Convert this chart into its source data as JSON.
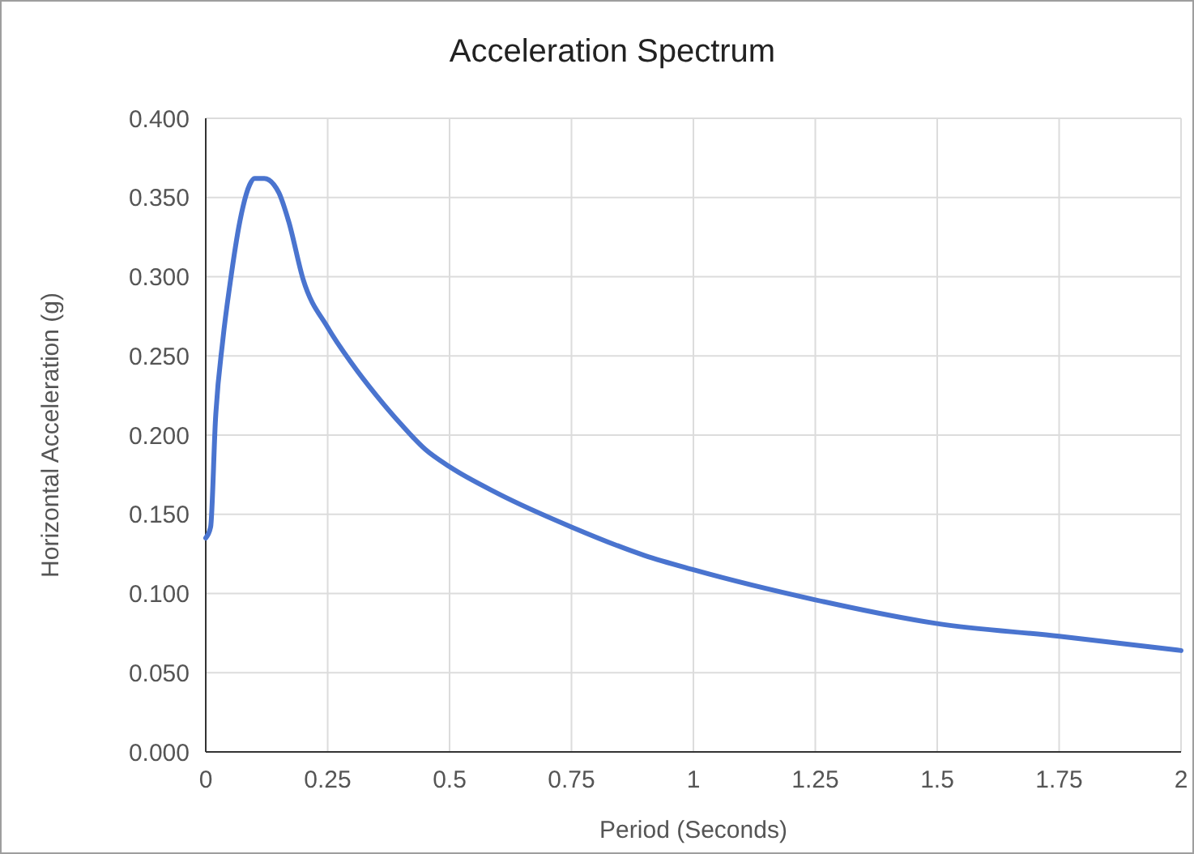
{
  "chart_data": {
    "type": "line",
    "title": "Acceleration Spectrum",
    "xlabel": "Period (Seconds)",
    "ylabel": "Horizontal Acceleration (g)",
    "series": [
      {
        "color": "#4a74cf",
        "x": [
          0,
          0.01,
          0.02,
          0.035,
          0.05,
          0.07,
          0.09,
          0.1,
          0.12,
          0.14,
          0.15,
          0.17,
          0.2,
          0.25,
          0.3,
          0.35,
          0.4,
          0.45,
          0.5,
          0.6,
          0.75,
          0.9,
          1,
          1.25,
          1.5,
          1.75,
          2
        ],
        "values": [
          0.135,
          0.142,
          0.21,
          0.26,
          0.296,
          0.335,
          0.358,
          0.362,
          0.362,
          0.358,
          0.353,
          0.335,
          0.298,
          0.268,
          0.245,
          0.225,
          0.207,
          0.191,
          0.18,
          0.163,
          0.142,
          0.124,
          0.115,
          0.096,
          0.081,
          0.073,
          0.064
        ]
      }
    ],
    "xlim": [
      0,
      2
    ],
    "xticks": [
      0,
      0.25,
      0.5,
      0.75,
      1,
      1.25,
      1.5,
      1.75,
      2
    ],
    "ylim": [
      0,
      0.4
    ],
    "yticks": [
      {
        "value": 0,
        "label": "0.000"
      },
      {
        "value": 0.05,
        "label": "0.050"
      },
      {
        "value": 0.1,
        "label": "0.100"
      },
      {
        "value": 0.15,
        "label": "0.150"
      },
      {
        "value": 0.2,
        "label": "0.200"
      },
      {
        "value": 0.25,
        "label": "0.250"
      },
      {
        "value": 0.3,
        "label": "0.300"
      },
      {
        "value": 0.35,
        "label": "0.350"
      },
      {
        "value": 0.4,
        "label": "0.400"
      }
    ],
    "grid": true,
    "marker": "none",
    "line_style": "solid"
  }
}
